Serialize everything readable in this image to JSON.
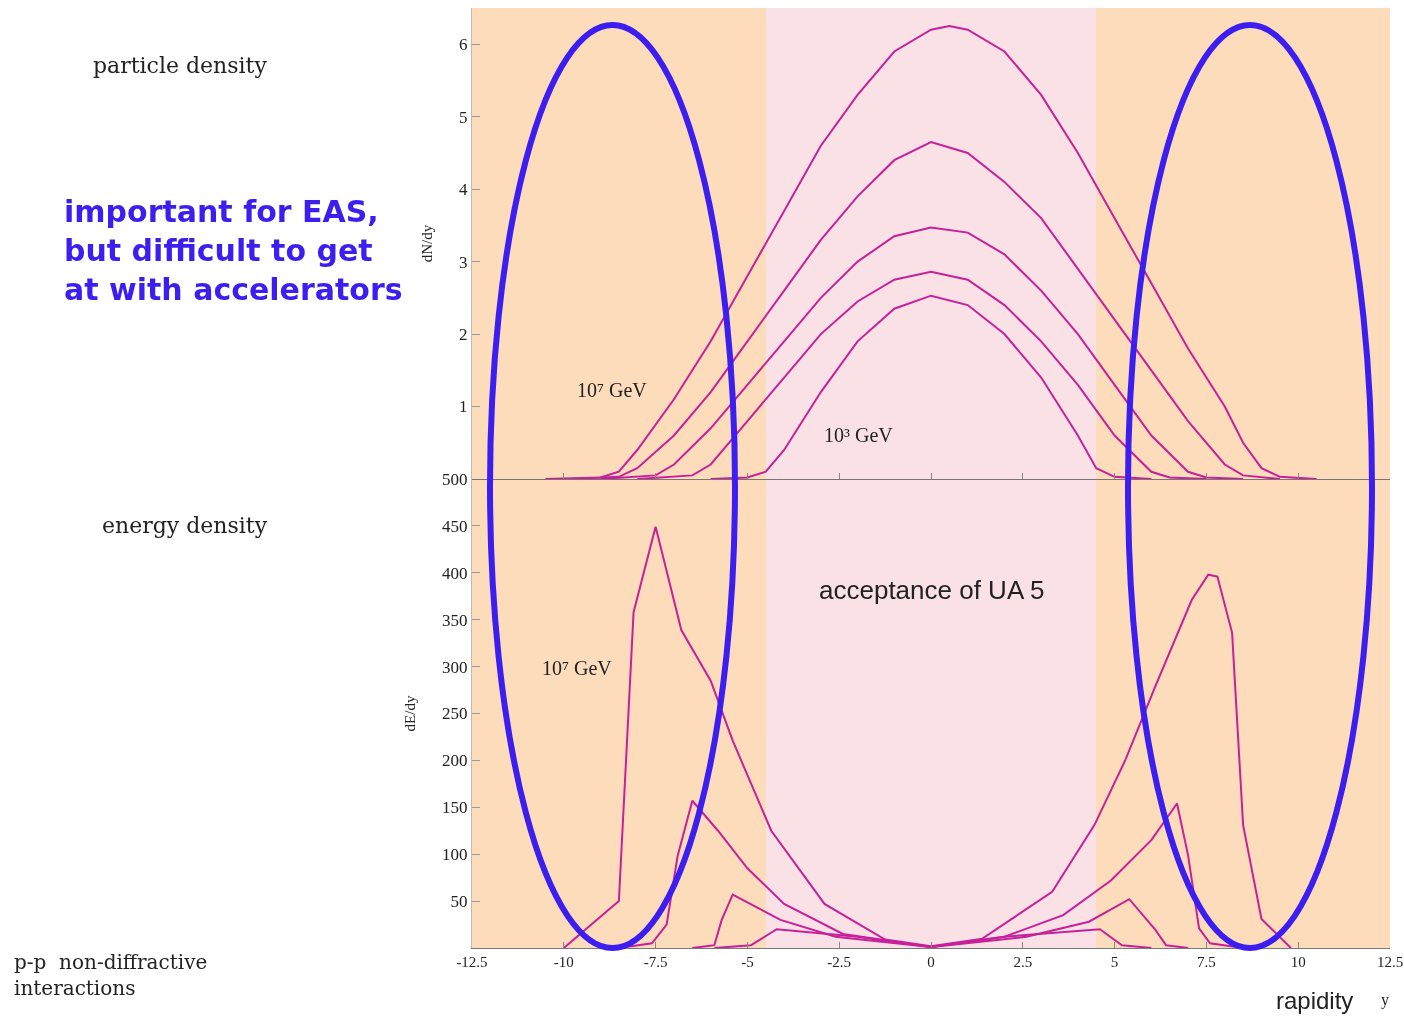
{
  "chart_data": [
    {
      "type": "line",
      "ylabel": "dN/dy",
      "xlim": [
        -12.5,
        12.5
      ],
      "xticks": [
        -12.5,
        -10,
        -7.5,
        -5,
        -2.5,
        0,
        2.5,
        5,
        7.5,
        10,
        12.5
      ],
      "ylim": [
        0,
        6.5
      ],
      "yticks": [
        1,
        2,
        3,
        4,
        5,
        6
      ],
      "tick_labels": "y",
      "marker": "none",
      "line_style": "solid",
      "bands": [
        {
          "axis": "x",
          "from": -4.5,
          "to": 4.5,
          "color": "#f9e1e6"
        }
      ],
      "annotations": [
        "particle density",
        "important for EAS,\nbut difficult to get\nat with accelerators",
        "10⁷ GeV",
        "10³ GeV"
      ],
      "series": [
        {
          "color": "#c8209a",
          "x": [
            -10.5,
            -9,
            -8.5,
            -8,
            -7,
            -6,
            -5,
            -4,
            -3,
            -2,
            -1,
            0,
            0.5,
            1,
            2,
            3,
            4,
            5,
            6,
            7,
            8,
            8.5,
            9,
            9.5,
            10.5
          ],
          "values": [
            0,
            0.02,
            0.1,
            0.4,
            1.1,
            1.9,
            2.8,
            3.7,
            4.6,
            5.3,
            5.9,
            6.2,
            6.25,
            6.2,
            5.9,
            5.3,
            4.5,
            3.6,
            2.7,
            1.8,
            1.0,
            0.5,
            0.15,
            0.03,
            0
          ]
        },
        {
          "color": "#c8209a",
          "x": [
            -9.8,
            -8.5,
            -8,
            -7,
            -6,
            -5,
            -4,
            -3,
            -2,
            -1,
            0,
            1,
            2,
            3,
            4,
            5,
            6,
            7,
            8,
            8.5,
            9.5
          ],
          "values": [
            0,
            0.03,
            0.15,
            0.6,
            1.2,
            1.9,
            2.6,
            3.3,
            3.9,
            4.4,
            4.65,
            4.5,
            4.1,
            3.6,
            2.9,
            2.2,
            1.5,
            0.8,
            0.2,
            0.05,
            0
          ]
        },
        {
          "color": "#c8209a",
          "x": [
            -9,
            -7.5,
            -7,
            -6,
            -5,
            -4,
            -3,
            -2,
            -1,
            0,
            1,
            2,
            3,
            4,
            5,
            6,
            7,
            7.5,
            8.5
          ],
          "values": [
            0,
            0.05,
            0.2,
            0.7,
            1.3,
            1.9,
            2.5,
            3.0,
            3.35,
            3.47,
            3.4,
            3.1,
            2.6,
            2.0,
            1.3,
            0.6,
            0.1,
            0.02,
            0
          ]
        },
        {
          "color": "#c8209a",
          "x": [
            -8,
            -6.5,
            -6,
            -5,
            -4,
            -3,
            -2,
            -1,
            0,
            1,
            2,
            3,
            4,
            5,
            6,
            6.5,
            7.5
          ],
          "values": [
            0,
            0.05,
            0.2,
            0.8,
            1.4,
            2.0,
            2.45,
            2.75,
            2.86,
            2.75,
            2.4,
            1.9,
            1.3,
            0.6,
            0.1,
            0.02,
            0
          ]
        },
        {
          "color": "#c8209a",
          "x": [
            -6,
            -5,
            -4.5,
            -4,
            -3,
            -2,
            -1,
            0,
            1,
            2,
            3,
            4,
            4.5,
            5,
            6
          ],
          "values": [
            0,
            0.02,
            0.1,
            0.4,
            1.2,
            1.9,
            2.35,
            2.53,
            2.4,
            2.0,
            1.4,
            0.6,
            0.15,
            0.03,
            0
          ]
        }
      ]
    },
    {
      "type": "line",
      "ylabel": "dE/dy",
      "xlabel": "rapidity",
      "xlim": [
        -12.5,
        12.5
      ],
      "xticks": [
        -12.5,
        -10,
        -7.5,
        -5,
        -2.5,
        0,
        2.5,
        5,
        7.5,
        10,
        12.5
      ],
      "ylim": [
        0,
        500
      ],
      "yticks": [
        50,
        100,
        150,
        200,
        250,
        300,
        350,
        400,
        450,
        500
      ],
      "marker": "none",
      "line_style": "solid",
      "bands": [
        {
          "axis": "x",
          "from": -4.5,
          "to": 4.5,
          "color": "#f9e1e6",
          "label": "acceptance of UA 5"
        }
      ],
      "annotations": [
        "energy density",
        "p-p  non-diffractive\ninteractions",
        "y",
        "10⁷ GeV"
      ],
      "series": [
        {
          "color": "#c8209a",
          "x": [
            -10,
            -8.5,
            -8.1,
            -7.5,
            -6.8,
            -6,
            -5.4,
            -4.35,
            -2.9,
            -1.25,
            0,
            1.4,
            3.3,
            4.45,
            5.3,
            6.1,
            7.1,
            7.55,
            7.8,
            8.2,
            8.5,
            9,
            9.8
          ],
          "values": [
            0,
            50,
            358,
            449,
            339,
            285,
            221,
            125,
            47,
            9,
            2,
            10,
            60,
            131,
            201,
            278,
            371,
            398,
            396,
            336,
            131,
            31,
            0
          ]
        },
        {
          "color": "#c8209a",
          "x": [
            -8.5,
            -7.6,
            -7.2,
            -6.9,
            -6.5,
            -5.8,
            -5,
            -4,
            -2.4,
            0,
            2,
            3.6,
            4.9,
            6,
            6.7,
            7,
            7.3,
            7.6,
            8.5
          ],
          "values": [
            0,
            5,
            25,
            98,
            157,
            125,
            85,
            47,
            15,
            1,
            12,
            35,
            72,
            115,
            154,
            99,
            21,
            5,
            0
          ]
        },
        {
          "color": "#c8209a",
          "x": [
            -6.5,
            -5.9,
            -5.7,
            -5.4,
            -4.1,
            -2.6,
            0,
            2.6,
            4.3,
            5.4,
            6.1,
            6.4,
            7
          ],
          "values": [
            0,
            3,
            30,
            57,
            30,
            12,
            1,
            12,
            28,
            52,
            20,
            3,
            0
          ]
        },
        {
          "color": "#c8209a",
          "x": [
            -5.9,
            -4.9,
            -4.2,
            -2,
            0,
            2,
            4.6,
            5.2,
            6
          ],
          "values": [
            0,
            3,
            20,
            12,
            1,
            12,
            20,
            3,
            0
          ]
        }
      ]
    }
  ]
}
